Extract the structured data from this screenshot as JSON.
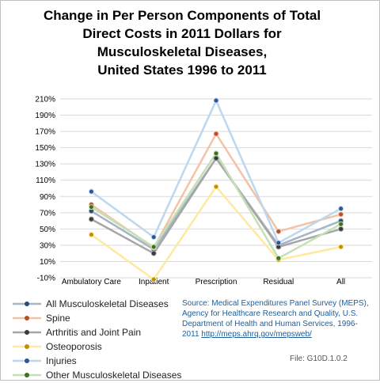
{
  "title_lines": [
    "Change in Per Person Components of Total",
    "Direct Costs in 2011 Dollars for",
    "Musculoskeletal Diseases,",
    "United States 1996 to 2011"
  ],
  "source_text": "Source: Medical Expenditures Panel Survey (MEPS), Agency for Healthcare Research and Quality, U.S. Department of Health and Human Services, 1996-2011",
  "source_link": "http://meps.ahrq.gov/mepsweb/",
  "file_label": "File: G10D.1.0.2",
  "chart_data": {
    "type": "line",
    "categories": [
      "Ambulatory Care",
      "Inpatient",
      "Prescription",
      "Residual",
      "All"
    ],
    "y_ticks": [
      "-10%",
      "10%",
      "30%",
      "50%",
      "70%",
      "90%",
      "110%",
      "130%",
      "150%",
      "170%",
      "190%",
      "210%"
    ],
    "ylim": [
      -10,
      210
    ],
    "grid": true,
    "legend_position": "bottom-left",
    "series": [
      {
        "name": "All Musculoskeletal Diseases",
        "color": "#a6b4c8",
        "marker": "#2e4a6e",
        "values": [
          72,
          25,
          137,
          30,
          60
        ]
      },
      {
        "name": "Spine",
        "color": "#f4c2a6",
        "marker": "#b4502a",
        "values": [
          80,
          27,
          167,
          47,
          68
        ]
      },
      {
        "name": "Arthritis and Joint Pain",
        "color": "#a6a6a6",
        "marker": "#3a3a3a",
        "values": [
          62,
          20,
          137,
          28,
          50
        ]
      },
      {
        "name": "Osteoporosis",
        "color": "#ffe9a0",
        "marker": "#bf9000",
        "values": [
          43,
          -12,
          102,
          12,
          28
        ]
      },
      {
        "name": "Injuries",
        "color": "#bdd7ee",
        "marker": "#2f5597",
        "values": [
          96,
          40,
          208,
          33,
          75
        ]
      },
      {
        "name": "Other Musculoskeletal Diseases",
        "color": "#c5e0b4",
        "marker": "#3f6f1f",
        "values": [
          77,
          28,
          143,
          14,
          56
        ]
      }
    ]
  }
}
